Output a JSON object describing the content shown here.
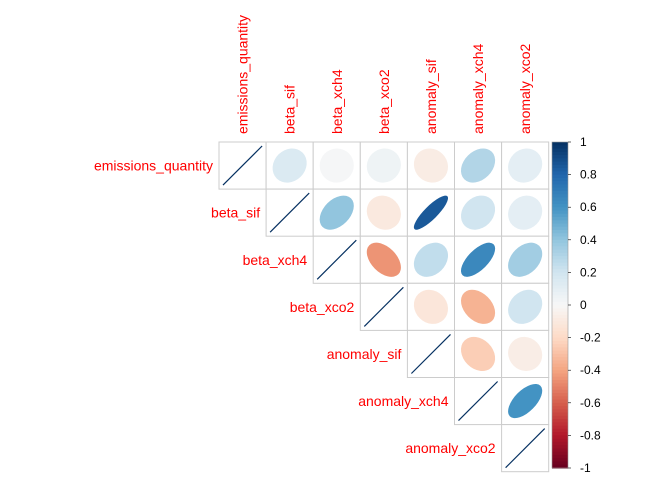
{
  "chart_data": {
    "type": "correlation-matrix",
    "shape": "ellipse",
    "layout": "upper-triangle",
    "variables": [
      "emissions_quantity",
      "beta_sif",
      "beta_xch4",
      "beta_xco2",
      "anomaly_sif",
      "anomaly_xch4",
      "anomaly_xco2"
    ],
    "matrix": [
      [
        1.0,
        0.15,
        0.01,
        0.05,
        -0.08,
        0.3,
        0.1
      ],
      [
        0.15,
        1.0,
        0.4,
        -0.1,
        0.85,
        0.2,
        0.1
      ],
      [
        0.01,
        0.4,
        1.0,
        -0.45,
        0.25,
        0.65,
        0.35
      ],
      [
        0.05,
        -0.1,
        -0.45,
        1.0,
        -0.12,
        -0.35,
        0.2
      ],
      [
        -0.08,
        0.85,
        0.25,
        -0.12,
        1.0,
        -0.25,
        -0.07
      ],
      [
        0.3,
        0.2,
        0.65,
        -0.35,
        -0.25,
        1.0,
        0.6
      ],
      [
        0.1,
        0.1,
        0.35,
        0.2,
        -0.07,
        0.6,
        1.0
      ]
    ],
    "colorbar": {
      "ticks": [
        "1",
        "0.8",
        "0.6",
        "0.4",
        "0.2",
        "0",
        "-0.2",
        "-0.4",
        "-0.6",
        "-0.8",
        "-1"
      ],
      "range": [
        -1,
        1
      ]
    },
    "colors": {
      "label": "#ff0000",
      "grid": "#cccccc",
      "low": "#67001f",
      "mid": "#f7f7f7",
      "high": "#053061"
    }
  }
}
